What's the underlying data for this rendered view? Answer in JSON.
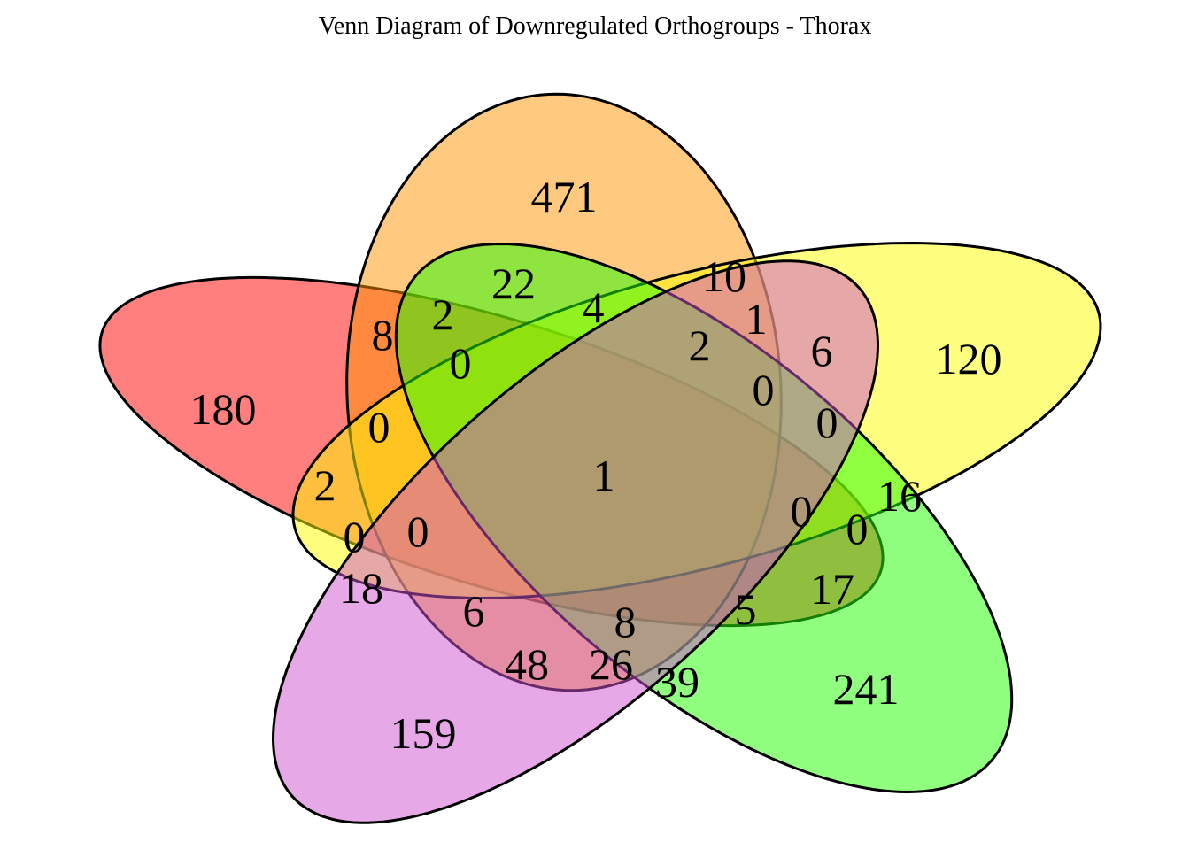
{
  "title": "Venn Diagram of Downregulated Orthogroups - Thorax",
  "sets": [
    {
      "color": "#ff0000"
    },
    {
      "color": "#ff9300"
    },
    {
      "color": "#ffff00"
    },
    {
      "color": "#21ff00"
    },
    {
      "color": "#cd51cd"
    }
  ],
  "region_counts": [
    "471",
    "180",
    "120",
    "241",
    "159",
    "22",
    "8",
    "2",
    "0",
    "10",
    "4",
    "1",
    "2",
    "6",
    "0",
    "0",
    "2",
    "1",
    "0",
    "0",
    "16",
    "0",
    "0",
    "0",
    "17",
    "18",
    "6",
    "8",
    "5",
    "48",
    "26",
    "39"
  ]
}
